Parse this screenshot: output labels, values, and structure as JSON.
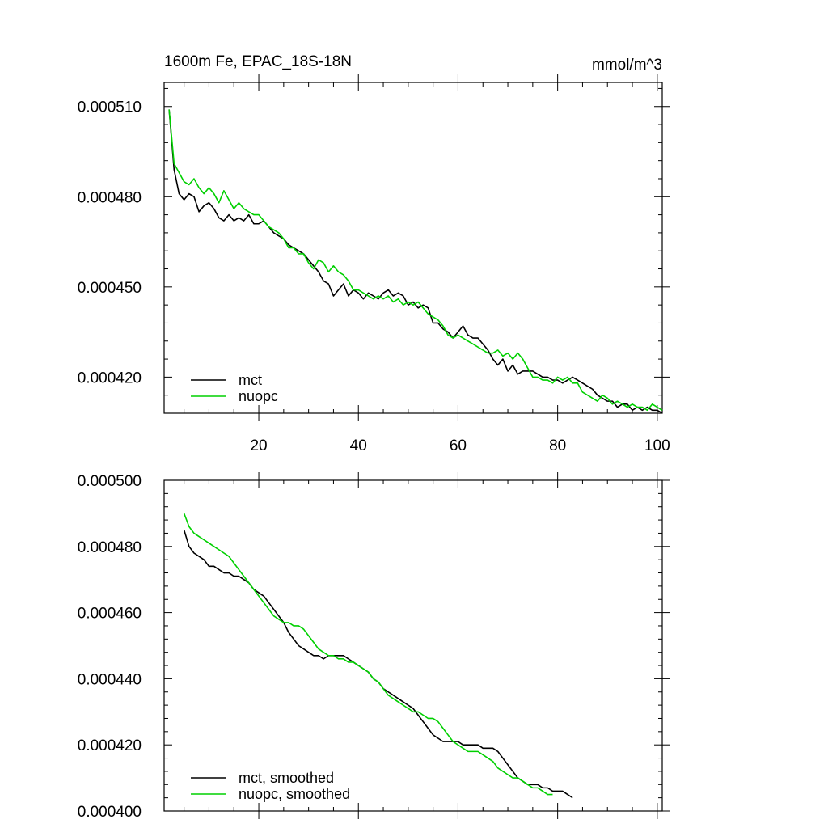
{
  "chart_data": [
    {
      "type": "line",
      "title": "1600m Fe, EPAC_18S-18N",
      "units": "mmol/m^3",
      "xlim": [
        1,
        101
      ],
      "ylim": [
        0.000408,
        0.000518
      ],
      "x_ticks": [
        20,
        40,
        60,
        80,
        100
      ],
      "x_tick_labels": [
        "20",
        "40",
        "60",
        "80",
        "100"
      ],
      "y_ticks": [
        0.00042,
        0.00045,
        0.00048,
        0.00051
      ],
      "y_tick_labels": [
        "0.000420",
        "0.000450",
        "0.000480",
        "0.000510"
      ],
      "legend_position": "bottom-left",
      "x_start": 2,
      "series": [
        {
          "name": "mct",
          "color": "#000000",
          "values": [
            0.000509,
            0.000489,
            0.000481,
            0.000479,
            0.000481,
            0.00048,
            0.000475,
            0.000477,
            0.000478,
            0.000476,
            0.000473,
            0.000472,
            0.000474,
            0.000472,
            0.000473,
            0.000472,
            0.000474,
            0.000471,
            0.000471,
            0.000472,
            0.00047,
            0.000468,
            0.000467,
            0.000466,
            0.000464,
            0.000463,
            0.000462,
            0.000461,
            0.000459,
            0.000457,
            0.000455,
            0.000452,
            0.000451,
            0.000447,
            0.000449,
            0.000451,
            0.000447,
            0.000449,
            0.000448,
            0.000446,
            0.000448,
            0.000447,
            0.000446,
            0.000448,
            0.000449,
            0.000447,
            0.000448,
            0.000447,
            0.000444,
            0.000445,
            0.000443,
            0.000444,
            0.000443,
            0.000438,
            0.000438,
            0.000436,
            0.000435,
            0.000433,
            0.000435,
            0.000437,
            0.000434,
            0.000433,
            0.000433,
            0.000431,
            0.000429,
            0.000426,
            0.000424,
            0.000426,
            0.000422,
            0.000424,
            0.000421,
            0.000422,
            0.000422,
            0.000422,
            0.000421,
            0.00042,
            0.00042,
            0.000419,
            0.000419,
            0.000418,
            0.000419,
            0.00042,
            0.000419,
            0.000418,
            0.000417,
            0.000416,
            0.000414,
            0.000413,
            0.000412,
            0.000412,
            0.00041,
            0.000411,
            0.000411,
            0.000409,
            0.00041,
            0.000409,
            0.00041,
            0.000409,
            0.000409,
            0.000408
          ]
        },
        {
          "name": "nuopc",
          "color": "#00d000",
          "values": [
            0.000509,
            0.000491,
            0.000488,
            0.000485,
            0.000484,
            0.000486,
            0.000483,
            0.000481,
            0.000483,
            0.000481,
            0.000478,
            0.000482,
            0.000479,
            0.000476,
            0.000478,
            0.000476,
            0.000475,
            0.000474,
            0.000474,
            0.000472,
            0.00047,
            0.000469,
            0.000468,
            0.000466,
            0.000463,
            0.000463,
            0.000461,
            0.000461,
            0.000458,
            0.000456,
            0.000459,
            0.000458,
            0.000455,
            0.000457,
            0.000455,
            0.000454,
            0.000452,
            0.000449,
            0.000449,
            0.000448,
            0.000447,
            0.000446,
            0.000447,
            0.000446,
            0.000447,
            0.000445,
            0.000446,
            0.000444,
            0.000445,
            0.000444,
            0.000445,
            0.000443,
            0.000441,
            0.00044,
            0.000439,
            0.000437,
            0.000434,
            0.000433,
            0.000434,
            0.000433,
            0.000432,
            0.000431,
            0.00043,
            0.000429,
            0.000428,
            0.000428,
            0.000429,
            0.000427,
            0.000428,
            0.000426,
            0.000428,
            0.000426,
            0.000423,
            0.00042,
            0.00042,
            0.000419,
            0.000419,
            0.000418,
            0.00042,
            0.000419,
            0.00042,
            0.000418,
            0.000418,
            0.000415,
            0.000414,
            0.000413,
            0.000412,
            0.000414,
            0.000413,
            0.000411,
            0.000412,
            0.000411,
            0.00041,
            0.000411,
            0.00041,
            0.00041,
            0.000409,
            0.000411,
            0.00041,
            0.000409
          ]
        }
      ]
    },
    {
      "type": "line",
      "title": "",
      "xlim": [
        1,
        101
      ],
      "ylim": [
        0.0004,
        0.0005
      ],
      "x_ticks": [
        20,
        40,
        60,
        80,
        100
      ],
      "x_tick_labels": [],
      "y_ticks": [
        0.0004,
        0.00042,
        0.00044,
        0.00046,
        0.00048,
        0.0005
      ],
      "y_tick_labels": [
        "0.000400",
        "0.000420",
        "0.000440",
        "0.000460",
        "0.000480",
        "0.000500"
      ],
      "legend_position": "bottom-left",
      "x_start": 5,
      "series": [
        {
          "name": "mct, smoothed",
          "color": "#000000",
          "values": [
            0.000485,
            0.00048,
            0.000478,
            0.000477,
            0.000476,
            0.000474,
            0.000474,
            0.000473,
            0.000472,
            0.000472,
            0.000471,
            0.000471,
            0.00047,
            0.000469,
            0.000467,
            0.000466,
            0.000465,
            0.000463,
            0.000461,
            0.000459,
            0.000457,
            0.000454,
            0.000452,
            0.00045,
            0.000449,
            0.000448,
            0.000447,
            0.000447,
            0.000446,
            0.000447,
            0.000447,
            0.000447,
            0.000447,
            0.000446,
            0.000445,
            0.000444,
            0.000443,
            0.000442,
            0.00044,
            0.000439,
            0.000437,
            0.000436,
            0.000435,
            0.000434,
            0.000433,
            0.000432,
            0.000431,
            0.000429,
            0.000427,
            0.000425,
            0.000423,
            0.000422,
            0.000421,
            0.000421,
            0.000421,
            0.000421,
            0.00042,
            0.00042,
            0.00042,
            0.00042,
            0.000419,
            0.000419,
            0.000419,
            0.000418,
            0.000416,
            0.000414,
            0.000412,
            0.00041,
            0.000409,
            0.000408,
            0.000408,
            0.000408,
            0.000407,
            0.000407,
            0.000406,
            0.000406,
            0.000406,
            0.000405,
            0.000404
          ]
        },
        {
          "name": "nuopc, smoothed",
          "color": "#00d000",
          "values": [
            0.00049,
            0.000486,
            0.000484,
            0.000483,
            0.000482,
            0.000481,
            0.00048,
            0.000479,
            0.000478,
            0.000477,
            0.000475,
            0.000473,
            0.000471,
            0.000469,
            0.000467,
            0.000465,
            0.000463,
            0.000461,
            0.000459,
            0.000458,
            0.000457,
            0.000457,
            0.000456,
            0.000456,
            0.000455,
            0.000453,
            0.000451,
            0.000449,
            0.000448,
            0.000447,
            0.000447,
            0.000446,
            0.000446,
            0.000445,
            0.000445,
            0.000444,
            0.000443,
            0.000442,
            0.00044,
            0.000439,
            0.000437,
            0.000435,
            0.000434,
            0.000433,
            0.000432,
            0.000431,
            0.00043,
            0.00043,
            0.000429,
            0.000428,
            0.000428,
            0.000427,
            0.000425,
            0.000423,
            0.000421,
            0.00042,
            0.000419,
            0.000418,
            0.000418,
            0.000418,
            0.000417,
            0.000416,
            0.000415,
            0.000413,
            0.000412,
            0.000411,
            0.00041,
            0.00041,
            0.000409,
            0.000408,
            0.000407,
            0.000407,
            0.000406,
            0.000405,
            0.000405
          ]
        }
      ]
    }
  ]
}
